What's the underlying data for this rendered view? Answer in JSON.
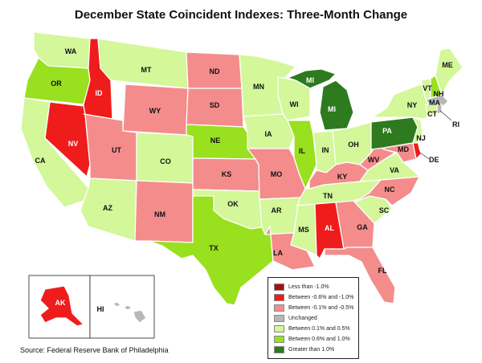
{
  "title": "December State Coincident Indexes: Three-Month Change",
  "source": "Source: Federal Reserve Bank of Philadelphia",
  "legend": [
    {
      "key": "lt_neg1",
      "label": "Less than -1.0%",
      "color": "#a50f0f"
    },
    {
      "key": "neg06_neg1",
      "label": "Between -0.6% and -1.0%",
      "color": "#ef1c1c"
    },
    {
      "key": "neg01_neg05",
      "label": "Between -0.1% and -0.5%",
      "color": "#f48c8c"
    },
    {
      "key": "unchanged",
      "label": "Unchanged",
      "color": "#b7b7b7"
    },
    {
      "key": "pos01_pos05",
      "label": "Between 0.1% and 0.5%",
      "color": "#d3f799"
    },
    {
      "key": "pos06_pos1",
      "label": "Between 0.6% and 1.0%",
      "color": "#99e01e"
    },
    {
      "key": "gt_pos1",
      "label": "Greater than 1.0%",
      "color": "#2e7a1e"
    }
  ],
  "states": {
    "WA": "pos01_pos05",
    "OR": "pos06_pos1",
    "CA": "pos01_pos05",
    "ID": "neg06_neg1",
    "NV": "neg06_neg1",
    "MT": "pos01_pos05",
    "WY": "neg01_neg05",
    "UT": "neg01_neg05",
    "AZ": "pos01_pos05",
    "CO": "pos01_pos05",
    "NM": "neg01_neg05",
    "ND": "neg01_neg05",
    "SD": "neg01_neg05",
    "NE": "pos06_pos1",
    "KS": "neg01_neg05",
    "OK": "pos01_pos05",
    "TX": "pos06_pos1",
    "MN": "pos01_pos05",
    "IA": "pos01_pos05",
    "MO": "neg01_neg05",
    "AR": "pos01_pos05",
    "LA": "neg01_neg05",
    "WI": "pos01_pos05",
    "IL": "pos06_pos1",
    "MI": "gt_pos1",
    "IN": "pos01_pos05",
    "OH": "pos01_pos05",
    "KY": "neg01_neg05",
    "TN": "pos01_pos05",
    "MS": "pos01_pos05",
    "AL": "neg06_neg1",
    "GA": "neg01_neg05",
    "FL": "neg01_neg05",
    "SC": "pos01_pos05",
    "NC": "neg01_neg05",
    "VA": "pos01_pos05",
    "WV": "neg01_neg05",
    "MD": "neg01_neg05",
    "DE": "neg06_neg1",
    "PA": "gt_pos1",
    "NJ": "pos01_pos05",
    "NY": "pos01_pos05",
    "CT": "pos01_pos05",
    "RI": "unchanged",
    "MA": "unchanged",
    "VT": "pos01_pos05",
    "NH": "pos06_pos1",
    "ME": "pos01_pos05",
    "AK": "neg06_neg1",
    "HI": "unchanged"
  }
}
